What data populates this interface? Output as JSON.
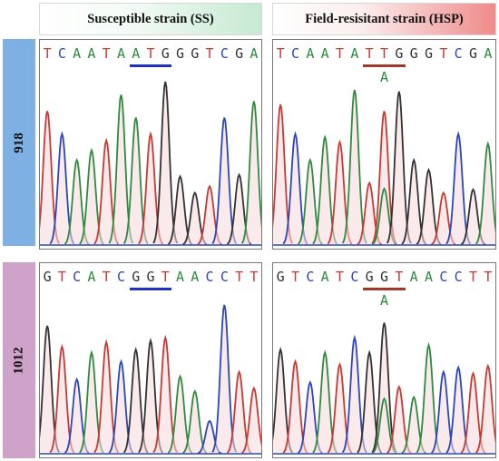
{
  "headers": {
    "ss": "Susceptible strain (SS)",
    "hsp": "Field-resisitant strain (HSP)"
  },
  "rows": {
    "r918": "918",
    "r1012": "1012"
  },
  "colors": {
    "A": "#2f8a3f",
    "T": "#c53a33",
    "C": "#2a47b5",
    "G": "#333333",
    "ss_underline": "#2030c0",
    "hsp_underline": "#a03a2a"
  },
  "panels": [
    {
      "id": "p918ss",
      "sequence": "TCAATAATGGGTCGA",
      "underline": [
        6,
        8
      ],
      "underline_color": "blue",
      "mutation": ""
    },
    {
      "id": "p918hsp",
      "sequence": "TCAATATTGGGTCGA",
      "underline": [
        6,
        8
      ],
      "underline_color": "brown",
      "mutation": "A",
      "mutation_index": 7
    },
    {
      "id": "p1012ss",
      "sequence": "GTCATCGGTAACCTT",
      "underline": [
        6,
        8
      ],
      "underline_color": "blue",
      "mutation": ""
    },
    {
      "id": "p1012hsp",
      "sequence": "GTCATCGGTAACCTT",
      "underline": [
        6,
        8
      ],
      "underline_color": "brown",
      "mutation": "A",
      "mutation_index": 7
    }
  ],
  "peaks": {
    "p918ss": [
      0.82,
      0.68,
      0.52,
      0.58,
      0.64,
      0.92,
      0.78,
      0.68,
      1.0,
      0.42,
      0.32,
      0.36,
      0.78,
      0.43,
      0.88
    ],
    "p918hsp": [
      0.86,
      0.68,
      0.52,
      0.66,
      0.63,
      0.95,
      0.38,
      0.82,
      0.94,
      0.52,
      0.46,
      0.32,
      0.68,
      0.34,
      0.62
    ],
    "p1012ss": [
      0.86,
      0.72,
      0.5,
      0.68,
      0.75,
      0.62,
      0.7,
      0.76,
      0.78,
      0.52,
      0.42,
      0.22,
      1.0,
      0.55,
      0.44
    ],
    "p1012hsp": [
      0.7,
      0.62,
      0.48,
      0.68,
      0.6,
      0.78,
      0.68,
      0.88,
      0.45,
      0.38,
      0.73,
      0.55,
      0.58,
      0.54,
      0.59
    ]
  }
}
